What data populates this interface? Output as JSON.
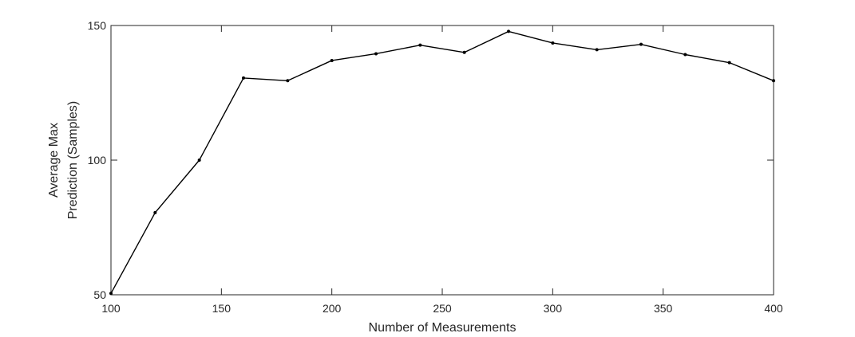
{
  "chart_data": {
    "type": "line",
    "title": "",
    "xlabel": "Number of Measurements",
    "ylabel_lines": [
      "Average Max",
      "Prediction (Samples)"
    ],
    "xlim": [
      100,
      400
    ],
    "ylim": [
      50,
      150
    ],
    "xticks": [
      100,
      150,
      200,
      250,
      300,
      350,
      400
    ],
    "yticks": [
      50,
      100,
      150
    ],
    "grid": false,
    "box": true,
    "colors": {
      "line": "#000000",
      "axis": "#262626"
    },
    "series": [
      {
        "x": [
          100,
          120,
          140,
          160,
          180,
          200,
          220,
          240,
          260,
          280,
          300,
          320,
          340,
          360,
          380,
          400
        ],
        "y": [
          50.5,
          80.5,
          100,
          130.5,
          129.5,
          137,
          139.5,
          142.7,
          140,
          147.8,
          143.5,
          141,
          143,
          139.2,
          136.2,
          129.5
        ]
      }
    ]
  }
}
